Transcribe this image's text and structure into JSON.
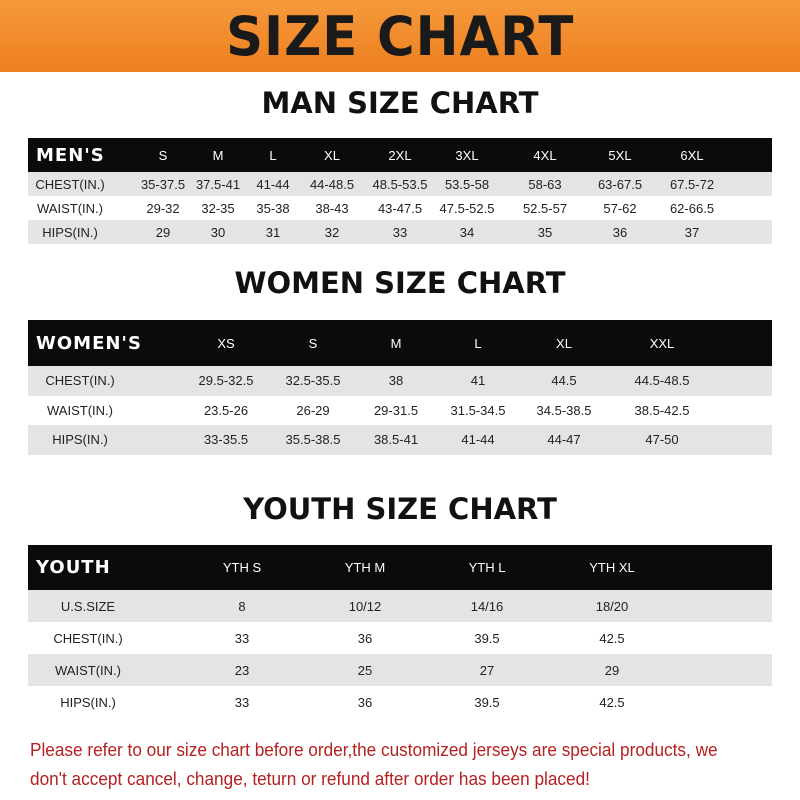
{
  "banner": {
    "title": "SIZE CHART",
    "color": "#f08a2a"
  },
  "men": {
    "title": "MAN SIZE CHART",
    "header": "MEN'S",
    "sizes": [
      "S",
      "M",
      "L",
      "XL",
      "2XL",
      "3XL",
      "4XL",
      "5XL",
      "6XL"
    ],
    "rows": [
      {
        "label": "CHEST(IN.)",
        "values": [
          "35-37.5",
          "37.5-41",
          "41-44",
          "44-48.5",
          "48.5-53.5",
          "53.5-58",
          "58-63",
          "63-67.5",
          "67.5-72"
        ]
      },
      {
        "label": "WAIST(IN.)",
        "values": [
          "29-32",
          "32-35",
          "35-38",
          "38-43",
          "43-47.5",
          "47.5-52.5",
          "52.5-57",
          "57-62",
          "62-66.5"
        ]
      },
      {
        "label": "HIPS(IN.)",
        "values": [
          "29",
          "30",
          "31",
          "32",
          "33",
          "34",
          "35",
          "36",
          "37"
        ]
      }
    ]
  },
  "women": {
    "title": "WOMEN SIZE CHART",
    "header": "WOMEN'S",
    "sizes": [
      "XS",
      "S",
      "M",
      "L",
      "XL",
      "XXL"
    ],
    "rows": [
      {
        "label": "CHEST(IN.)",
        "values": [
          "29.5-32.5",
          "32.5-35.5",
          "38",
          "41",
          "44.5",
          "44.5-48.5"
        ]
      },
      {
        "label": "WAIST(IN.)",
        "values": [
          "23.5-26",
          "26-29",
          "29-31.5",
          "31.5-34.5",
          "34.5-38.5",
          "38.5-42.5"
        ]
      },
      {
        "label": "HIPS(IN.)",
        "values": [
          "33-35.5",
          "35.5-38.5",
          "38.5-41",
          "41-44",
          "44-47",
          "47-50"
        ]
      }
    ]
  },
  "youth": {
    "title": "YOUTH SIZE CHART",
    "header": "YOUTH",
    "sizes": [
      "YTH S",
      "YTH M",
      "YTH L",
      "YTH XL"
    ],
    "rows": [
      {
        "label": "U.S.SIZE",
        "values": [
          "8",
          "10/12",
          "14/16",
          "18/20"
        ]
      },
      {
        "label": "CHEST(IN.)",
        "values": [
          "33",
          "36",
          "39.5",
          "42.5"
        ]
      },
      {
        "label": "WAIST(IN.)",
        "values": [
          "23",
          "25",
          "27",
          "29"
        ]
      },
      {
        "label": "HIPS(IN.)",
        "values": [
          "33",
          "36",
          "39.5",
          "42.5"
        ]
      }
    ]
  },
  "note": "Please refer to our size chart before order,the customized jerseys are special products, we don't accept cancel, change, teturn or refund after order has been placed!"
}
